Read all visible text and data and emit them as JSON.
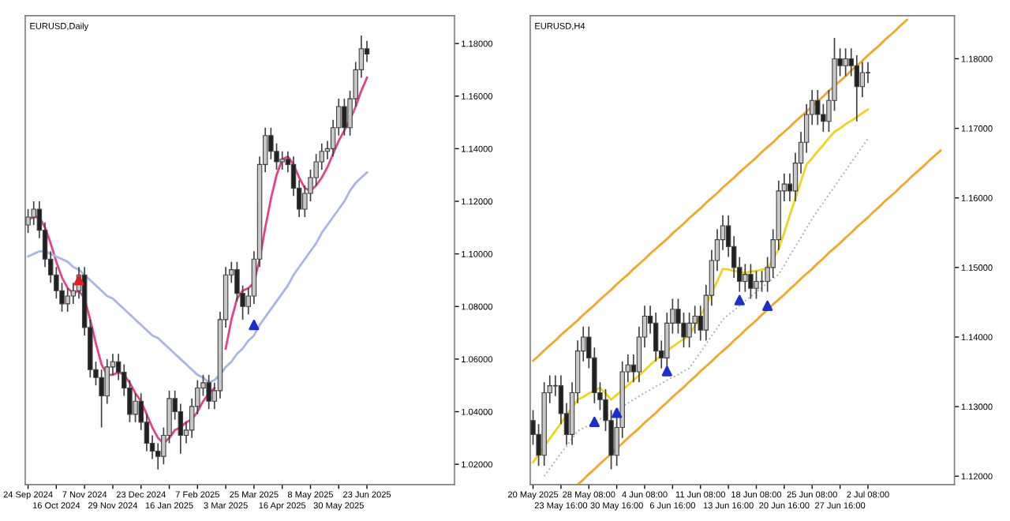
{
  "chart_data": [
    {
      "type": "candlestick",
      "title": "EURUSD,Daily",
      "categories": [
        "24 Sep 2024",
        null,
        null,
        null,
        null,
        "16 Oct 2024",
        null,
        null,
        null,
        null,
        "7 Nov 2024",
        null,
        null,
        null,
        null,
        "29 Nov 2024",
        null,
        null,
        null,
        null,
        "23 Dec 2024",
        null,
        null,
        null,
        null,
        "16 Jan 2025",
        null,
        null,
        null,
        null,
        "7 Feb 2025",
        null,
        null,
        null,
        null,
        "3 Mar 2025",
        null,
        null,
        null,
        null,
        "25 Mar 2025",
        null,
        null,
        null,
        null,
        "16 Apr 2025",
        null,
        null,
        null,
        null,
        "8 May 2025",
        null,
        null,
        null,
        null,
        "30 May 2025",
        null,
        null,
        null,
        null,
        "23 Jun 2025",
        null,
        null,
        null,
        null,
        null,
        null,
        null,
        null,
        null,
        null,
        null,
        null,
        null,
        null,
        null
      ],
      "ohlc": [
        [
          1.111,
          1.117,
          1.108,
          1.114
        ],
        [
          1.114,
          1.12,
          1.111,
          1.117
        ],
        [
          1.117,
          1.12,
          1.106,
          1.109
        ],
        [
          1.109,
          1.112,
          1.095,
          1.098
        ],
        [
          1.098,
          1.101,
          1.089,
          1.092
        ],
        [
          1.092,
          1.095,
          1.083,
          1.086
        ],
        [
          1.086,
          1.089,
          1.078,
          1.081
        ],
        [
          1.081,
          1.087,
          1.078,
          1.084
        ],
        [
          1.084,
          1.089,
          1.081,
          1.086
        ],
        [
          1.086,
          1.095,
          1.083,
          1.092
        ],
        [
          1.092,
          1.095,
          1.069,
          1.072
        ],
        [
          1.072,
          1.075,
          1.053,
          1.056
        ],
        [
          1.056,
          1.059,
          1.05,
          1.053
        ],
        [
          1.053,
          1.056,
          1.034,
          1.046
        ],
        [
          1.046,
          1.06,
          1.043,
          1.057
        ],
        [
          1.057,
          1.062,
          1.054,
          1.059
        ],
        [
          1.059,
          1.062,
          1.052,
          1.055
        ],
        [
          1.055,
          1.058,
          1.046,
          1.049
        ],
        [
          1.049,
          1.052,
          1.036,
          1.039
        ],
        [
          1.039,
          1.047,
          1.036,
          1.044
        ],
        [
          1.044,
          1.047,
          1.033,
          1.036
        ],
        [
          1.036,
          1.039,
          1.025,
          1.028
        ],
        [
          1.028,
          1.031,
          1.022,
          1.025
        ],
        [
          1.025,
          1.028,
          1.018,
          1.023
        ],
        [
          1.023,
          1.034,
          1.02,
          1.031
        ],
        [
          1.031,
          1.048,
          1.028,
          1.045
        ],
        [
          1.045,
          1.048,
          1.037,
          1.04
        ],
        [
          1.04,
          1.043,
          1.024,
          1.031
        ],
        [
          1.031,
          1.036,
          1.028,
          1.033
        ],
        [
          1.033,
          1.045,
          1.03,
          1.042
        ],
        [
          1.042,
          1.052,
          1.039,
          1.049
        ],
        [
          1.049,
          1.054,
          1.046,
          1.051
        ],
        [
          1.051,
          1.054,
          1.041,
          1.044
        ],
        [
          1.044,
          1.051,
          1.041,
          1.048
        ],
        [
          1.048,
          1.078,
          1.045,
          1.075
        ],
        [
          1.075,
          1.095,
          1.072,
          1.092
        ],
        [
          1.092,
          1.097,
          1.089,
          1.094
        ],
        [
          1.094,
          1.097,
          1.082,
          1.085
        ],
        [
          1.085,
          1.088,
          1.075,
          1.08
        ],
        [
          1.08,
          1.087,
          1.077,
          1.084
        ],
        [
          1.084,
          1.101,
          1.081,
          1.098
        ],
        [
          1.098,
          1.137,
          1.095,
          1.134
        ],
        [
          1.134,
          1.148,
          1.131,
          1.145
        ],
        [
          1.145,
          1.148,
          1.136,
          1.139
        ],
        [
          1.139,
          1.142,
          1.132,
          1.135
        ],
        [
          1.135,
          1.139,
          1.132,
          1.136
        ],
        [
          1.136,
          1.139,
          1.131,
          1.134
        ],
        [
          1.134,
          1.137,
          1.122,
          1.125
        ],
        [
          1.125,
          1.128,
          1.114,
          1.117
        ],
        [
          1.117,
          1.126,
          1.114,
          1.123
        ],
        [
          1.123,
          1.132,
          1.12,
          1.129
        ],
        [
          1.129,
          1.138,
          1.126,
          1.135
        ],
        [
          1.135,
          1.142,
          1.132,
          1.139
        ],
        [
          1.139,
          1.143,
          1.136,
          1.14
        ],
        [
          1.14,
          1.151,
          1.137,
          1.148
        ],
        [
          1.148,
          1.159,
          1.145,
          1.156
        ],
        [
          1.156,
          1.159,
          1.145,
          1.148
        ],
        [
          1.148,
          1.162,
          1.145,
          1.159
        ],
        [
          1.159,
          1.173,
          1.156,
          1.17
        ],
        [
          1.17,
          1.183,
          1.167,
          1.178
        ],
        [
          1.178,
          1.181,
          1.173,
          1.176
        ],
        null,
        null,
        null,
        null,
        null,
        null,
        null,
        null,
        null,
        null,
        null,
        null,
        null,
        null,
        null
      ],
      "series": [
        {
          "type": "line",
          "color": "#e8408a",
          "values": [
            1.113,
            1.114,
            1.114,
            1.11,
            1.104,
            1.097,
            1.091,
            1.087,
            1.085,
            1.086,
            1.083,
            1.075,
            1.066,
            1.058,
            1.054,
            1.054,
            1.055,
            1.054,
            1.051,
            1.047,
            1.044,
            1.039,
            1.034,
            1.03,
            1.028,
            1.03,
            1.033,
            1.034,
            1.036,
            1.037,
            1.04,
            1.044,
            1.047,
            1.049,
            null,
            1.064,
            1.075,
            1.083,
            1.086,
            1.087,
            1.089,
            1.098,
            1.11,
            1.121,
            1.13,
            1.136,
            1.137,
            1.134,
            1.129,
            1.125,
            1.124,
            1.126,
            1.129,
            1.133,
            1.138,
            1.143,
            1.147,
            1.151,
            1.156,
            1.162,
            1.167,
            null,
            null,
            null,
            null,
            null,
            null,
            null,
            null,
            null,
            null,
            null,
            null,
            null,
            null,
            null
          ]
        },
        {
          "type": "line",
          "color": "#a9b4e8",
          "values": [
            1.099,
            1.1,
            1.101,
            1.101,
            1.1,
            1.099,
            1.098,
            1.097,
            1.095,
            1.094,
            1.092,
            1.09,
            1.088,
            1.086,
            1.084,
            1.083,
            1.081,
            1.079,
            1.077,
            1.075,
            1.073,
            1.071,
            1.069,
            1.068,
            1.066,
            1.064,
            1.062,
            1.06,
            1.058,
            1.056,
            1.054,
            1.053,
            1.051,
            1.052,
            1.054,
            1.057,
            1.059,
            1.062,
            1.064,
            1.067,
            1.069,
            1.073,
            1.076,
            1.079,
            1.082,
            1.085,
            1.088,
            1.092,
            1.095,
            1.098,
            1.101,
            1.104,
            1.108,
            1.111,
            1.114,
            1.117,
            1.12,
            1.124,
            1.127,
            1.129,
            1.131,
            null,
            null,
            null,
            null,
            null,
            null,
            null,
            null,
            null,
            null,
            null,
            null,
            null,
            null,
            null
          ]
        },
        {
          "type": "scatter",
          "color": "#e02020",
          "marker": "triangle",
          "values": [
            null,
            null,
            null,
            null,
            null,
            null,
            null,
            null,
            null,
            1.09,
            null,
            null,
            null,
            null,
            null,
            null,
            null,
            null,
            null,
            null,
            null,
            null,
            null,
            null,
            null,
            null,
            null,
            null,
            null,
            null,
            null,
            null,
            null,
            null,
            null,
            null,
            null,
            null,
            null,
            null,
            null,
            null,
            null,
            null,
            null,
            null,
            null,
            null,
            null,
            null,
            null,
            null,
            null,
            null,
            null,
            null,
            null,
            null,
            null,
            null,
            null,
            null,
            null,
            null,
            null,
            null,
            null,
            null,
            null,
            null,
            null,
            null,
            null,
            null,
            null,
            null
          ]
        },
        {
          "type": "scatter",
          "color": "#1a2fd0",
          "marker": "triangle",
          "values": [
            null,
            null,
            null,
            null,
            null,
            null,
            null,
            null,
            null,
            null,
            null,
            null,
            null,
            null,
            null,
            null,
            null,
            null,
            null,
            null,
            null,
            null,
            null,
            null,
            null,
            null,
            null,
            null,
            null,
            null,
            null,
            null,
            null,
            null,
            null,
            null,
            null,
            null,
            null,
            null,
            1.073,
            null,
            null,
            null,
            null,
            null,
            null,
            null,
            null,
            null,
            null,
            null,
            null,
            null,
            null,
            null,
            null,
            null,
            null,
            null,
            null,
            null,
            null,
            null,
            null,
            null,
            null,
            null,
            null,
            null,
            null,
            null,
            null,
            null,
            null,
            null
          ]
        }
      ],
      "ylim": [
        1.0123,
        1.1906
      ],
      "yticks": [
        {
          "value": 1.02,
          "label": "1.02000"
        },
        {
          "value": 1.04,
          "label": "1.04000"
        },
        {
          "value": 1.06,
          "label": "1.06000"
        },
        {
          "value": 1.08,
          "label": "1.08000"
        },
        {
          "value": 1.1,
          "label": "1.10000"
        },
        {
          "value": 1.12,
          "label": "1.12000"
        },
        {
          "value": 1.14,
          "label": "1.14000"
        },
        {
          "value": 1.16,
          "label": "1.16000"
        },
        {
          "value": 1.18,
          "label": "1.18000"
        }
      ]
    },
    {
      "type": "candlestick",
      "title": "EURUSD,H4",
      "categories": [
        "20 May 2025",
        null,
        null,
        null,
        null,
        "23 May 16:00",
        null,
        null,
        null,
        null,
        "28 May 08:00",
        null,
        null,
        null,
        null,
        "30 May 16:00",
        null,
        null,
        null,
        null,
        "4 Jun 08:00",
        null,
        null,
        null,
        null,
        "6 Jun 16:00",
        null,
        null,
        null,
        null,
        "11 Jun 08:00",
        null,
        null,
        null,
        null,
        "13 Jun 16:00",
        null,
        null,
        null,
        null,
        "18 Jun 08:00",
        null,
        null,
        null,
        null,
        "20 Jun 16:00",
        null,
        null,
        null,
        null,
        "25 Jun 08:00",
        null,
        null,
        null,
        null,
        "27 Jun 16:00",
        null,
        null,
        null,
        null,
        "2 Jul 08:00",
        null,
        null,
        null,
        null,
        null,
        null,
        null,
        null,
        null,
        null,
        null,
        null,
        null,
        null,
        null
      ],
      "ohlc": [
        [
          1.128,
          1.1295,
          1.1245,
          1.126
        ],
        [
          1.126,
          1.1275,
          1.1215,
          1.123
        ],
        [
          1.123,
          1.1335,
          1.1215,
          1.132
        ],
        [
          1.132,
          1.1345,
          1.1305,
          1.133
        ],
        [
          1.133,
          1.1345,
          1.1315,
          1.133
        ],
        [
          1.133,
          1.1345,
          1.1275,
          1.129
        ],
        [
          1.129,
          1.1305,
          1.1245,
          1.126
        ],
        [
          1.126,
          1.1335,
          1.1245,
          1.132
        ],
        [
          1.132,
          1.1395,
          1.1305,
          1.138
        ],
        [
          1.138,
          1.1415,
          1.1365,
          1.14
        ],
        [
          1.14,
          1.1415,
          1.1355,
          1.137
        ],
        [
          1.137,
          1.1385,
          1.1305,
          1.132
        ],
        [
          1.132,
          1.1335,
          1.1295,
          1.131
        ],
        [
          1.131,
          1.1325,
          1.1265,
          1.128
        ],
        [
          1.128,
          1.1295,
          1.121,
          1.123
        ],
        [
          1.123,
          1.1285,
          1.1215,
          1.127
        ],
        [
          1.127,
          1.1365,
          1.1255,
          1.135
        ],
        [
          1.135,
          1.1375,
          1.1335,
          1.136
        ],
        [
          1.136,
          1.1375,
          1.1335,
          1.135
        ],
        [
          1.135,
          1.1415,
          1.1335,
          1.14
        ],
        [
          1.14,
          1.1445,
          1.1385,
          1.143
        ],
        [
          1.143,
          1.1445,
          1.1405,
          1.142
        ],
        [
          1.142,
          1.1435,
          1.1365,
          1.138
        ],
        [
          1.138,
          1.1395,
          1.1355,
          1.137
        ],
        [
          1.137,
          1.1435,
          1.1355,
          1.142
        ],
        [
          1.142,
          1.1455,
          1.1405,
          1.144
        ],
        [
          1.144,
          1.1455,
          1.1405,
          1.142
        ],
        [
          1.142,
          1.1435,
          1.1385,
          1.14
        ],
        [
          1.14,
          1.1435,
          1.1385,
          1.142
        ],
        [
          1.142,
          1.1445,
          1.1405,
          1.143
        ],
        [
          1.143,
          1.1445,
          1.1395,
          1.141
        ],
        [
          1.141,
          1.1475,
          1.1395,
          1.146
        ],
        [
          1.146,
          1.1525,
          1.1445,
          1.151
        ],
        [
          1.151,
          1.1555,
          1.1495,
          1.154
        ],
        [
          1.154,
          1.1575,
          1.1525,
          1.156
        ],
        [
          1.156,
          1.1575,
          1.1515,
          1.153
        ],
        [
          1.153,
          1.1545,
          1.1485,
          1.15
        ],
        [
          1.15,
          1.1515,
          1.1465,
          1.148
        ],
        [
          1.148,
          1.1505,
          1.1465,
          1.149
        ],
        [
          1.149,
          1.1505,
          1.1455,
          1.147
        ],
        [
          1.147,
          1.1495,
          1.1455,
          1.148
        ],
        [
          1.148,
          1.1495,
          1.1465,
          1.148
        ],
        [
          1.148,
          1.1515,
          1.1465,
          1.15
        ],
        [
          1.15,
          1.1555,
          1.1485,
          1.154
        ],
        [
          1.154,
          1.1625,
          1.1525,
          1.161
        ],
        [
          1.161,
          1.1635,
          1.1595,
          1.162
        ],
        [
          1.162,
          1.1635,
          1.1595,
          1.161
        ],
        [
          1.161,
          1.1665,
          1.1595,
          1.165
        ],
        [
          1.165,
          1.1695,
          1.1635,
          1.168
        ],
        [
          1.168,
          1.1735,
          1.1665,
          1.172
        ],
        [
          1.172,
          1.1755,
          1.1705,
          1.174
        ],
        [
          1.174,
          1.1755,
          1.1705,
          1.172
        ],
        [
          1.172,
          1.1735,
          1.1695,
          1.171
        ],
        [
          1.171,
          1.1755,
          1.1695,
          1.174
        ],
        [
          1.174,
          1.183,
          1.1725,
          1.18
        ],
        [
          1.18,
          1.1815,
          1.1775,
          1.179
        ],
        [
          1.179,
          1.1815,
          1.1775,
          1.18
        ],
        [
          1.18,
          1.1815,
          1.1775,
          1.179
        ],
        [
          1.179,
          1.1805,
          1.171,
          1.176
        ],
        [
          1.176,
          1.1795,
          1.1745,
          1.178
        ],
        [
          1.178,
          1.1795,
          1.1765,
          1.178
        ],
        null,
        null,
        null,
        null,
        null,
        null,
        null,
        null,
        null,
        null,
        null,
        null,
        null,
        null,
        null
      ],
      "series": [
        {
          "type": "line",
          "color": "#f5a623",
          "values": [
            1.1366,
            1.1373,
            1.1381,
            1.1388,
            1.1395,
            1.1403,
            1.141,
            1.1417,
            1.1424,
            1.1432,
            1.1439,
            1.1446,
            1.1454,
            1.1461,
            1.1468,
            1.1476,
            1.1483,
            1.149,
            1.1498,
            1.1505,
            1.1512,
            1.152,
            1.1527,
            1.1534,
            1.1541,
            1.1549,
            1.1556,
            1.1563,
            1.1571,
            1.1578,
            1.1585,
            1.1593,
            1.16,
            1.1607,
            1.1615,
            1.1622,
            1.1629,
            1.1637,
            1.1644,
            1.1651,
            1.1658,
            1.1666,
            1.1673,
            1.168,
            1.1688,
            1.1695,
            1.1702,
            1.171,
            1.1717,
            1.1724,
            1.1732,
            1.1739,
            1.1746,
            1.1754,
            1.1761,
            1.1768,
            1.1775,
            1.1783,
            1.179,
            1.1797,
            1.1805,
            1.1812,
            1.1819,
            1.1827,
            1.1834,
            1.1841,
            1.1849,
            1.1856,
            null,
            null,
            null,
            null,
            null,
            null,
            null,
            null
          ]
        },
        {
          "type": "line",
          "color": "#f5a623",
          "values": [
            null,
            null,
            null,
            null,
            null,
            null,
            null,
            null,
            1.1188,
            1.1195,
            1.1203,
            1.121,
            1.1218,
            1.1225,
            1.1232,
            1.124,
            1.1247,
            1.1255,
            1.1262,
            1.1269,
            1.1277,
            1.1284,
            1.1291,
            1.1299,
            1.1306,
            1.1314,
            1.1321,
            1.1328,
            1.1336,
            1.1343,
            1.1351,
            1.1358,
            1.1365,
            1.1373,
            1.138,
            1.1387,
            1.1395,
            1.1402,
            1.141,
            1.1417,
            1.1424,
            1.1432,
            1.1439,
            1.1447,
            1.1454,
            1.1461,
            1.1469,
            1.1476,
            1.1484,
            1.1491,
            1.1498,
            1.1506,
            1.1513,
            1.1521,
            1.1528,
            1.1535,
            1.1543,
            1.155,
            1.1558,
            1.1565,
            1.1572,
            1.158,
            1.1587,
            1.1595,
            1.1602,
            1.1609,
            1.1617,
            1.1624,
            1.1632,
            1.1639,
            1.1646,
            1.1654,
            1.1661,
            1.1668,
            null,
            null
          ]
        },
        {
          "type": "line",
          "color": "#f2d31b",
          "values": [
            1.122,
            1.1231,
            1.1243,
            1.1254,
            1.1265,
            1.1276,
            1.1288,
            1.1299,
            1.131,
            1.1314,
            1.1319,
            1.1323,
            1.1327,
            1.1319,
            1.131,
            1.1317,
            1.1324,
            1.1331,
            1.1338,
            1.1345,
            1.1352,
            1.136,
            1.1367,
            1.1374,
            1.1381,
            1.1386,
            1.1392,
            1.1397,
            1.1402,
            1.1416,
            1.1431,
            1.1445,
            1.1463,
            1.148,
            1.1498,
            1.1497,
            1.1495,
            1.1494,
            1.1492,
            1.1494,
            1.1495,
            1.1497,
            1.1498,
            1.1512,
            1.1526,
            1.155,
            1.1575,
            1.1599,
            1.1624,
            1.1648,
            1.1657,
            1.1667,
            1.1676,
            1.1686,
            1.1695,
            1.17,
            1.1706,
            1.1711,
            1.1716,
            1.1722,
            1.1727,
            null,
            null,
            null,
            null,
            null,
            null,
            null,
            null,
            null,
            null,
            null,
            null,
            null,
            null,
            null
          ]
        },
        {
          "type": "line",
          "color": "#b0b0b0",
          "line_style": "dotted",
          "values": [
            null,
            null,
            1.12,
            1.1211,
            1.1222,
            1.1233,
            1.1243,
            1.1254,
            1.1265,
            1.1269,
            1.1273,
            1.1278,
            1.1282,
            1.1286,
            1.129,
            1.1295,
            1.13,
            1.1305,
            1.131,
            1.1315,
            1.132,
            1.1324,
            1.1329,
            1.1333,
            1.1338,
            1.1342,
            1.1346,
            1.1351,
            1.1355,
            1.1367,
            1.1378,
            1.139,
            1.1402,
            1.1413,
            1.1425,
            1.1432,
            1.1438,
            1.1445,
            1.1452,
            1.1458,
            1.1465,
            1.1471,
            1.1478,
            1.1484,
            1.149,
            1.1503,
            1.1517,
            1.153,
            1.1543,
            1.1557,
            1.157,
            1.1582,
            1.1593,
            1.1605,
            1.1616,
            1.1628,
            1.1639,
            1.1651,
            1.1662,
            1.1674,
            1.1685,
            null,
            null,
            null,
            null,
            null,
            null,
            null,
            null,
            null,
            null,
            null,
            null,
            null,
            null,
            null
          ]
        },
        {
          "type": "scatter",
          "color": "#1a2fd0",
          "marker": "triangle",
          "values": [
            null,
            null,
            null,
            null,
            null,
            null,
            null,
            null,
            null,
            null,
            null,
            1.1278,
            null,
            null,
            null,
            1.1291,
            null,
            null,
            null,
            null,
            null,
            null,
            null,
            null,
            1.1351,
            null,
            null,
            null,
            null,
            null,
            null,
            null,
            null,
            null,
            null,
            null,
            null,
            1.1453,
            null,
            null,
            null,
            null,
            1.1445,
            null,
            null,
            null,
            null,
            null,
            null,
            null,
            null,
            null,
            null,
            null,
            null,
            null,
            null,
            null,
            null,
            null,
            null,
            null,
            null,
            null,
            null,
            null,
            null,
            null,
            null,
            null,
            null,
            null,
            null,
            null,
            null,
            null
          ]
        }
      ],
      "ylim": [
        1.1188,
        1.1862
      ],
      "yticks": [
        {
          "value": 1.12,
          "label": "1.12000"
        },
        {
          "value": 1.13,
          "label": "1.13000"
        },
        {
          "value": 1.14,
          "label": "1.14000"
        },
        {
          "value": 1.15,
          "label": "1.15000"
        },
        {
          "value": 1.16,
          "label": "1.16000"
        },
        {
          "value": 1.17,
          "label": "1.17000"
        },
        {
          "value": 1.18,
          "label": "1.18000"
        }
      ]
    }
  ]
}
